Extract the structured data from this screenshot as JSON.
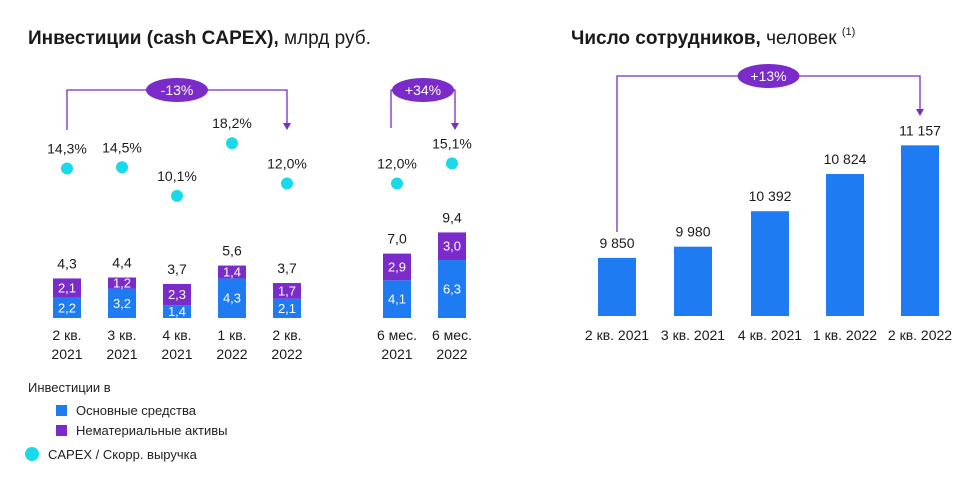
{
  "colors": {
    "fixed_assets": "#1e7bf2",
    "intangible": "#7a2bc9",
    "capex_ratio": "#1ad9e8",
    "bracket": "#7a2bc9",
    "badge": "#7a2bc9",
    "employees": "#1e7bf2"
  },
  "left": {
    "title_bold": "Инвестиции (cash CAPEX),",
    "title_light": " млрд руб.",
    "badge_q": "-13%",
    "badge_h": "+34%"
  },
  "right": {
    "title_bold": "Число сотрудников,",
    "title_light": " человек",
    "footnote": "(1)",
    "badge": "+13%"
  },
  "legend": {
    "header": "Инвестиции в",
    "fixed": "Основные средства",
    "intangible": "Нематериальные активы",
    "ratio": "CAPEX / Скорр. выручка"
  },
  "chart_data": [
    {
      "type": "bar",
      "stacked": true,
      "categories": [
        "2 кв.\n2021",
        "3 кв.\n2021",
        "4 кв.\n2021",
        "1 кв.\n2022",
        "2 кв.\n2022",
        "6 мес.\n2021",
        "6 мес.\n2022"
      ],
      "series": [
        {
          "name": "Основные средства",
          "values": [
            2.2,
            3.2,
            1.4,
            4.3,
            2.1,
            4.1,
            6.3
          ],
          "labels": [
            "2,2",
            "3,2",
            "1,4",
            "4,3",
            "2,1",
            "4,1",
            "6,3"
          ]
        },
        {
          "name": "Нематериальные активы",
          "values": [
            2.1,
            1.2,
            2.3,
            1.4,
            1.7,
            2.9,
            3.0
          ],
          "labels": [
            "2,1",
            "1,2",
            "2,3",
            "1,4",
            "1,7",
            "2,9",
            "3,0"
          ]
        }
      ],
      "totals": [
        "4,3",
        "4,4",
        "3,7",
        "5,6",
        "3,7",
        "7,0",
        "9,4"
      ],
      "ratio_series": {
        "name": "CAPEX / Скорр. выручка",
        "values": [
          14.3,
          14.5,
          10.1,
          18.2,
          12.0,
          12.0,
          15.1
        ],
        "labels": [
          "14,3%",
          "14,5%",
          "10,1%",
          "18,2%",
          "12,0%",
          "12,0%",
          "15,1%"
        ]
      },
      "annotations": [
        {
          "from": "2 кв.\n2021",
          "to": "2 кв.\n2022",
          "text": "-13%"
        },
        {
          "from": "6 мес.\n2021",
          "to": "6 мес.\n2022",
          "text": "+34%"
        }
      ]
    },
    {
      "type": "bar",
      "categories": [
        "2 кв. 2021",
        "3 кв. 2021",
        "4 кв. 2021",
        "1 кв. 2022",
        "2 кв. 2022"
      ],
      "values": [
        9850,
        9980,
        10392,
        10824,
        11157
      ],
      "labels": [
        "9 850",
        "9 980",
        "10 392",
        "10 824",
        "11 157"
      ],
      "annotations": [
        {
          "from": "2 кв. 2021",
          "to": "2 кв. 2022",
          "text": "+13%"
        }
      ]
    }
  ]
}
